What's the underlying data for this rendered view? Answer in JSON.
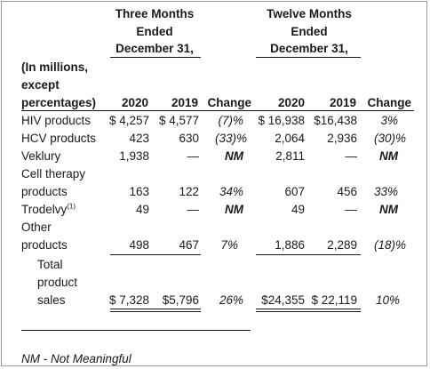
{
  "headers": {
    "three_months": [
      "Three Months",
      "Ended",
      "December 31,"
    ],
    "twelve_months": [
      "Twelve Months",
      "Ended",
      "December 31,"
    ],
    "row_label": [
      "(In millions,",
      "except",
      "percentages)"
    ],
    "columns": [
      "2020",
      "2019",
      "Change",
      "2020",
      "2019",
      "Change"
    ]
  },
  "rows": [
    {
      "label": [
        "HIV products"
      ],
      "q2020": "$ 4,257",
      "q2019": "$ 4,577",
      "qchg": "(7)%",
      "y2020": "$ 16,938",
      "y2019": "$16,438",
      "ychg": "3%"
    },
    {
      "label": [
        "HCV products"
      ],
      "q2020": "423",
      "q2019": "630",
      "qchg": "(33)%",
      "y2020": "2,064",
      "y2019": "2,936",
      "ychg": "(30)%"
    },
    {
      "label": [
        "Veklury"
      ],
      "q2020": "1,938",
      "q2019": "—",
      "qchg": "NM",
      "y2020": "2,811",
      "y2019": "—",
      "ychg": "NM"
    },
    {
      "label": [
        "Cell therapy",
        "products"
      ],
      "q2020": "163",
      "q2019": "122",
      "qchg": "34%",
      "y2020": "607",
      "y2019": "456",
      "ychg": "33%"
    },
    {
      "label": [
        "Trodelvy"
      ],
      "label_sup": "(1)",
      "q2020": "49",
      "q2019": "—",
      "qchg": "NM",
      "y2020": "49",
      "y2019": "—",
      "ychg": "NM"
    },
    {
      "label": [
        "Other",
        "products"
      ],
      "q2020": "498",
      "q2019": "467",
      "qchg": "7%",
      "y2020": "1,886",
      "y2019": "2,289",
      "ychg": "(18)%"
    }
  ],
  "total": {
    "label": [
      "Total",
      "product",
      "sales"
    ],
    "q2020": "$ 7,328",
    "q2019": "$5,796",
    "qchg": "26%",
    "y2020": "$24,355",
    "y2019": "$ 22,119",
    "ychg": "10%"
  },
  "footnote": "NM - Not Meaningful"
}
